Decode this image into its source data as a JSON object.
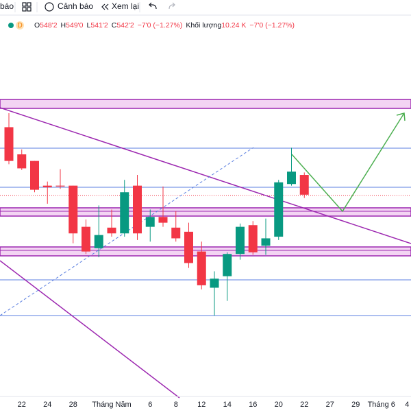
{
  "toolbar": {
    "items": [
      "báo",
      "Cảnh báo",
      "Xem lại"
    ]
  },
  "legend": {
    "interval": "D",
    "fields": [
      {
        "key": "O",
        "value": "548'2"
      },
      {
        "key": "H",
        "value": "549'0"
      },
      {
        "key": "L",
        "value": "541'2"
      },
      {
        "key": "C",
        "value": "542'2"
      },
      {
        "key": "",
        "value": "−7'0 (−1.27%)"
      },
      {
        "key": "Khối lượng",
        "value": "10.24 K"
      },
      {
        "key": "",
        "value": "−7'0 (−1.27%)"
      }
    ]
  },
  "chart_data": {
    "type": "candlestick",
    "categories": [
      null,
      "22",
      null,
      "24",
      null,
      "28",
      null,
      null,
      "Tháng Năm",
      null,
      null,
      "6",
      null,
      "8",
      null,
      "12",
      null,
      "14",
      null,
      "16",
      null,
      "20",
      null,
      "22",
      null,
      "27",
      null,
      "29",
      null,
      "Tháng 6",
      null,
      "4"
    ],
    "open": [
      562.75,
      554.5,
      552.5,
      545,
      545,
      545,
      532.5,
      526,
      532.25,
      530.5,
      545,
      532.5,
      535.5,
      532.25,
      531,
      525,
      514,
      517.5,
      524.25,
      533,
      526.75,
      529.5,
      545.5,
      548.25,
      null,
      null,
      null,
      null,
      null,
      null,
      null,
      null
    ],
    "high": [
      567,
      556,
      552.5,
      546.25,
      550,
      545,
      534.75,
      539,
      537.75,
      546.75,
      548.25,
      537.75,
      544.75,
      537.25,
      533.75,
      528,
      519,
      524.75,
      533.5,
      534.25,
      535,
      546.75,
      556.5,
      549,
      null,
      null,
      null,
      null,
      null,
      null,
      null,
      null
    ],
    "low": [
      551.5,
      549.75,
      543,
      539.5,
      544,
      527.5,
      524.25,
      523.25,
      529.5,
      529.5,
      528.5,
      528,
      532.5,
      528,
      520,
      513.5,
      505.5,
      510,
      522.5,
      524,
      524,
      528.5,
      545,
      541.25,
      null,
      null,
      null,
      null,
      null,
      null,
      null,
      null
    ],
    "close": [
      552.5,
      550.25,
      543.75,
      544.5,
      544.75,
      530.5,
      525,
      530,
      530.5,
      543,
      530.5,
      535.5,
      533.75,
      529,
      521.5,
      514.75,
      516.75,
      524.25,
      532.5,
      524.75,
      529,
      546,
      549.25,
      542.25,
      null,
      null,
      null,
      null,
      null,
      null,
      null,
      null
    ],
    "up_color": "#089981",
    "down_color": "#f23645",
    "ylim": [
      481.6,
      592
    ]
  }
}
